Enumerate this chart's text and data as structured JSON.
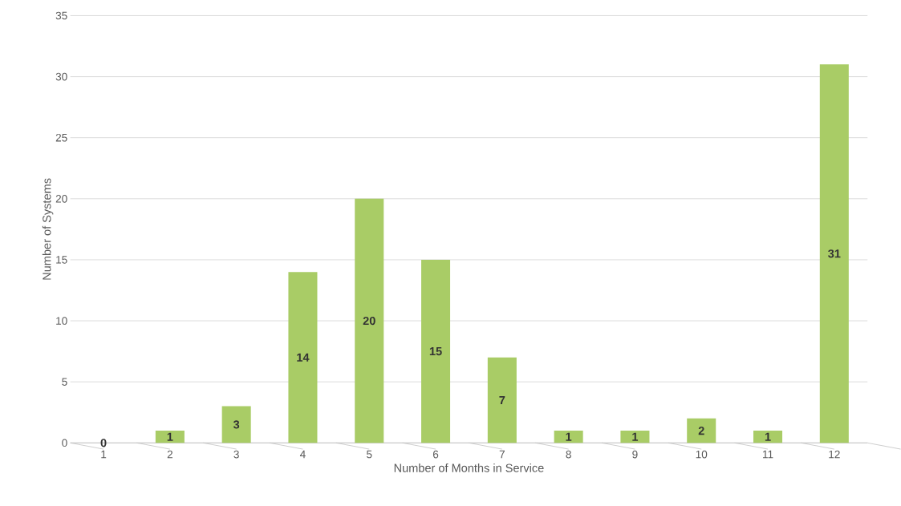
{
  "chart_data": {
    "type": "bar",
    "xlabel": "Number of Months in Service",
    "ylabel": "Number of Systems",
    "categories": [
      "1",
      "2",
      "3",
      "4",
      "5",
      "6",
      "7",
      "8",
      "9",
      "10",
      "11",
      "12"
    ],
    "values": [
      0,
      1,
      3,
      14,
      20,
      15,
      7,
      1,
      1,
      2,
      1,
      31
    ],
    "color": "#a9cc66",
    "ylim": [
      0,
      35
    ],
    "yticks": [
      0,
      5,
      10,
      15,
      20,
      25,
      30,
      35
    ],
    "grid": "y",
    "data_labels": true
  }
}
